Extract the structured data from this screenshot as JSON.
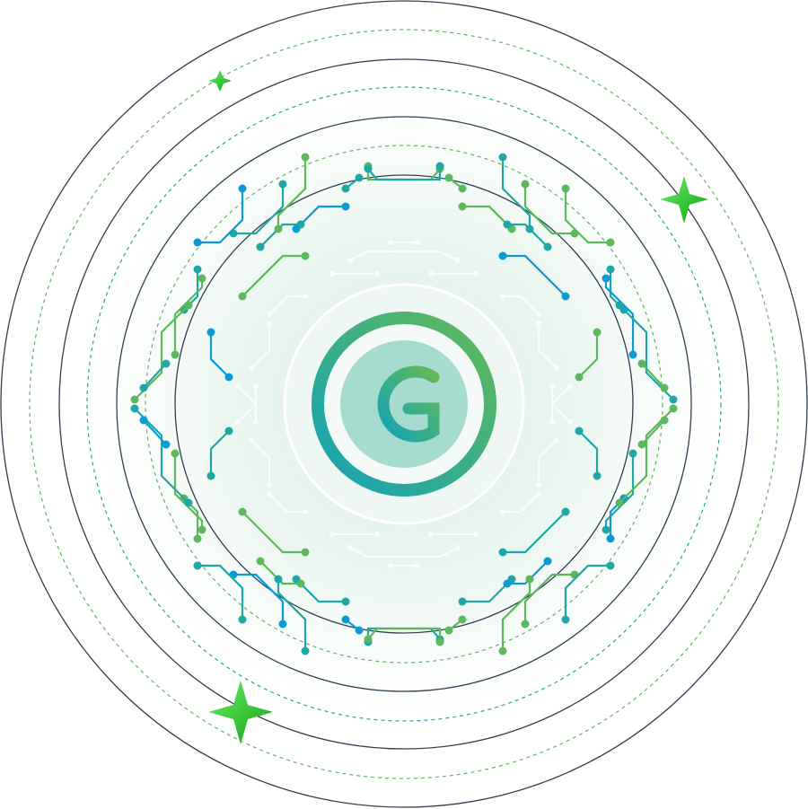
{
  "illustration": {
    "subject": "digital-euro-coin-circuit",
    "icon": "euro-g-coin-icon",
    "colors": {
      "ring_line": "#2e3f52",
      "green": "#5cb85c",
      "teal": "#1fa6a6",
      "blue": "#0a9bd6",
      "coin_inner": "#a6dbd0",
      "star": "#2fd12f"
    }
  }
}
